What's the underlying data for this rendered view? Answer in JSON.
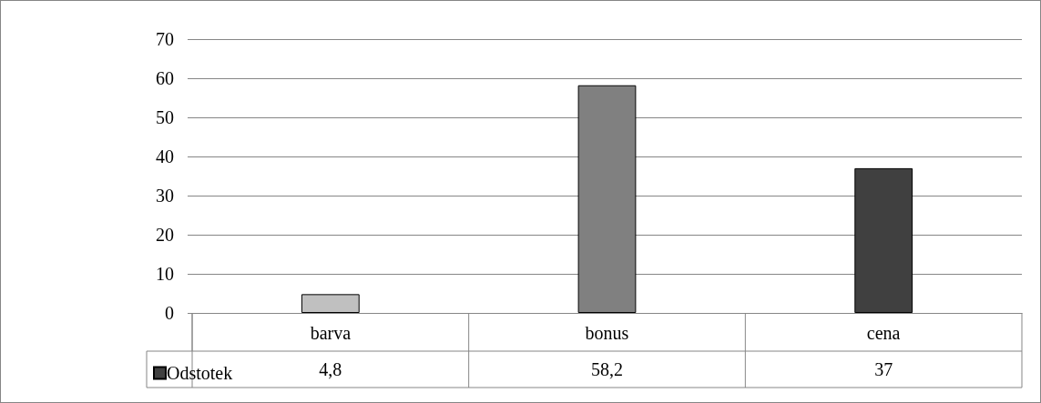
{
  "chart_data": {
    "type": "bar",
    "categories": [
      "barva",
      "bonus",
      "cena"
    ],
    "series": [
      {
        "name": "Odstotek",
        "color": "#404040",
        "colors": [
          "#c0c0c0",
          "#808080",
          "#404040"
        ],
        "values": [
          4.8,
          58.2,
          37
        ],
        "value_labels": [
          "4,8",
          "58,2",
          "37"
        ]
      }
    ],
    "ylim": [
      0,
      70
    ],
    "yticks": [
      0,
      10,
      20,
      30,
      40,
      50,
      60,
      70
    ],
    "grid": "y",
    "legend": "bottom"
  }
}
